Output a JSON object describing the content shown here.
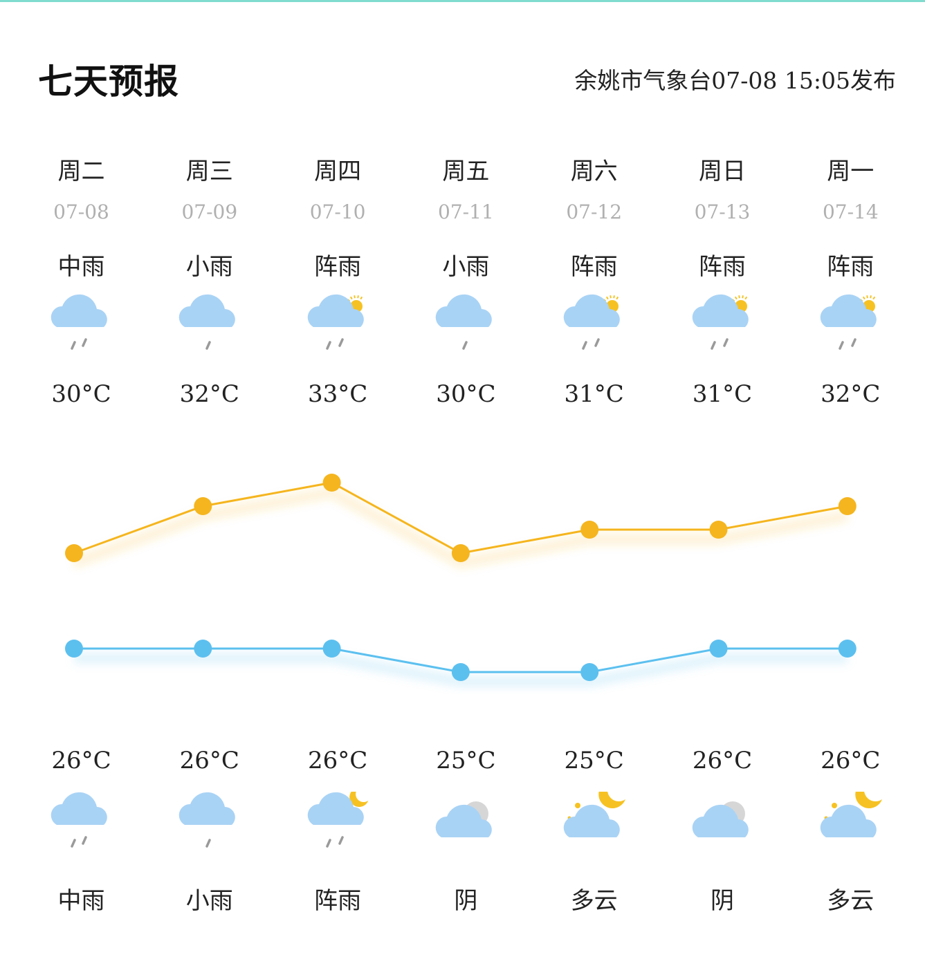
{
  "header": {
    "title": "七天预报",
    "publish_info": "余姚市气象台07-08 15:05发布"
  },
  "colors": {
    "high_line": "#f5b51e",
    "low_line": "#5cc0ef",
    "accent": "#7fdccf"
  },
  "days": [
    {
      "weekday": "周二",
      "date": "07-08",
      "day_condition": "中雨",
      "day_icon": "rain-moderate-icon",
      "high": "30°C",
      "low": "26°C",
      "night_icon": "rain-moderate-icon",
      "night_condition": "中雨"
    },
    {
      "weekday": "周三",
      "date": "07-09",
      "day_condition": "小雨",
      "day_icon": "rain-light-icon",
      "high": "32°C",
      "low": "26°C",
      "night_icon": "rain-light-icon",
      "night_condition": "小雨"
    },
    {
      "weekday": "周四",
      "date": "07-10",
      "day_condition": "阵雨",
      "day_icon": "shower-sun-icon",
      "high": "33°C",
      "low": "26°C",
      "night_icon": "shower-moon-icon",
      "night_condition": "阵雨"
    },
    {
      "weekday": "周五",
      "date": "07-11",
      "day_condition": "小雨",
      "day_icon": "rain-light-icon",
      "high": "30°C",
      "low": "25°C",
      "night_icon": "overcast-icon",
      "night_condition": "阴"
    },
    {
      "weekday": "周六",
      "date": "07-12",
      "day_condition": "阵雨",
      "day_icon": "shower-sun-icon",
      "high": "31°C",
      "low": "25°C",
      "night_icon": "cloudy-moon-icon",
      "night_condition": "多云"
    },
    {
      "weekday": "周日",
      "date": "07-13",
      "day_condition": "阵雨",
      "day_icon": "shower-sun-icon",
      "high": "31°C",
      "low": "26°C",
      "night_icon": "overcast-icon",
      "night_condition": "阴"
    },
    {
      "weekday": "周一",
      "date": "07-14",
      "day_condition": "阵雨",
      "day_icon": "shower-sun-icon",
      "high": "32°C",
      "low": "26°C",
      "night_icon": "cloudy-moon-icon",
      "night_condition": "多云"
    }
  ],
  "chart_data": {
    "type": "line",
    "categories": [
      "07-08",
      "07-09",
      "07-10",
      "07-11",
      "07-12",
      "07-13",
      "07-14"
    ],
    "series": [
      {
        "values": [
          30,
          32,
          33,
          30,
          31,
          31,
          32
        ]
      },
      {
        "values": [
          26,
          26,
          26,
          25,
          25,
          26,
          26
        ]
      }
    ]
  }
}
